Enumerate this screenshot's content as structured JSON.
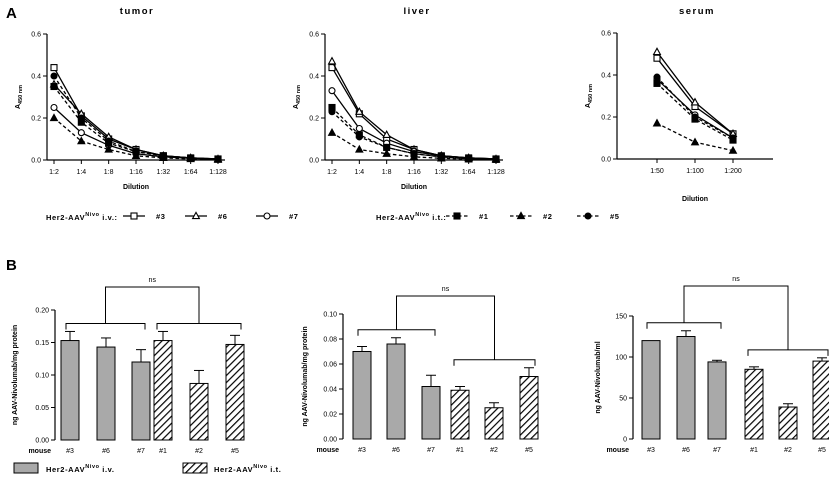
{
  "panels": {
    "a": "A",
    "b": "B"
  },
  "colors": {
    "iv_bar": "#a9a9a9",
    "it_bar": "#ffffff",
    "line": "#000000"
  },
  "legend_a": {
    "iv_prefix": "Her2-AAV",
    "iv_sup": "Nivo",
    "iv_suffix": " i.v.:",
    "it_prefix": "Her2-AAV",
    "it_sup": "Nivo",
    "it_suffix": " i.t.:",
    "entries": [
      "#3",
      "#6",
      "#7",
      "#1",
      "#2",
      "#5"
    ]
  },
  "legend_b": {
    "iv_prefix": "Her2-AAV",
    "iv_sup": "Nivo",
    "iv_suffix": " i.v.",
    "it_prefix": "Her2-AAV",
    "it_sup": "Nivo",
    "it_suffix": " i.t."
  },
  "chart_data": [
    {
      "type": "line",
      "title": "tumor",
      "xlabel": "Dilution",
      "ylabel": "A450 nm",
      "categories": [
        "1:2",
        "1:4",
        "1:8",
        "1:16",
        "1:32",
        "1:64",
        "1:128"
      ],
      "ylim": [
        0,
        0.6
      ],
      "yticks": [
        "0.0",
        "0.2",
        "0.4",
        "0.6"
      ],
      "series": [
        {
          "name": "#3",
          "route": "i.v.",
          "marker": "square",
          "values": [
            0.44,
            0.21,
            0.1,
            0.05,
            0.02,
            0.01,
            0.005
          ]
        },
        {
          "name": "#6",
          "route": "i.v.",
          "marker": "triangle",
          "values": [
            0.36,
            0.22,
            0.11,
            0.05,
            0.02,
            0.01,
            0.005
          ]
        },
        {
          "name": "#7",
          "route": "i.v.",
          "marker": "circle",
          "values": [
            0.25,
            0.13,
            0.07,
            0.03,
            0.015,
            0.008,
            0.003
          ]
        },
        {
          "name": "#1",
          "route": "i.t.",
          "marker": "square",
          "values": [
            0.35,
            0.18,
            0.08,
            0.04,
            0.02,
            0.008,
            0.004
          ]
        },
        {
          "name": "#2",
          "route": "i.t.",
          "marker": "triangle",
          "values": [
            0.2,
            0.09,
            0.05,
            0.02,
            0.01,
            0.005,
            0.002
          ]
        },
        {
          "name": "#5",
          "route": "i.t.",
          "marker": "circle",
          "values": [
            0.4,
            0.2,
            0.09,
            0.04,
            0.02,
            0.01,
            0.005
          ]
        }
      ]
    },
    {
      "type": "line",
      "title": "liver",
      "xlabel": "Dilution",
      "ylabel": "A450 nm",
      "categories": [
        "1:2",
        "1:4",
        "1:8",
        "1:16",
        "1:32",
        "1:64",
        "1:128"
      ],
      "ylim": [
        0,
        0.6
      ],
      "yticks": [
        "0.0",
        "0.2",
        "0.4",
        "0.6"
      ],
      "series": [
        {
          "name": "#3",
          "route": "i.v.",
          "marker": "square",
          "values": [
            0.44,
            0.22,
            0.1,
            0.05,
            0.02,
            0.01,
            0.005
          ]
        },
        {
          "name": "#6",
          "route": "i.v.",
          "marker": "triangle",
          "values": [
            0.47,
            0.23,
            0.12,
            0.05,
            0.02,
            0.01,
            0.005
          ]
        },
        {
          "name": "#7",
          "route": "i.v.",
          "marker": "circle",
          "values": [
            0.33,
            0.15,
            0.08,
            0.04,
            0.02,
            0.01,
            0.005
          ]
        },
        {
          "name": "#1",
          "route": "i.t.",
          "marker": "square",
          "values": [
            0.25,
            0.12,
            0.06,
            0.03,
            0.015,
            0.005,
            0.003
          ]
        },
        {
          "name": "#2",
          "route": "i.t.",
          "marker": "triangle",
          "values": [
            0.13,
            0.05,
            0.03,
            0.015,
            0.008,
            0.004,
            0.002
          ]
        },
        {
          "name": "#5",
          "route": "i.t.",
          "marker": "circle",
          "values": [
            0.23,
            0.11,
            0.06,
            0.03,
            0.015,
            0.006,
            0.003
          ]
        }
      ]
    },
    {
      "type": "line",
      "title": "serum",
      "xlabel": "Dilution",
      "ylabel": "A450 nm",
      "categories": [
        "1:50",
        "1:100",
        "1:200"
      ],
      "ylim": [
        0,
        0.6
      ],
      "yticks": [
        "0.0",
        "0.2",
        "0.4",
        "0.6"
      ],
      "series": [
        {
          "name": "#3",
          "route": "i.v.",
          "marker": "square",
          "values": [
            0.48,
            0.25,
            0.12
          ]
        },
        {
          "name": "#6",
          "route": "i.v.",
          "marker": "triangle",
          "values": [
            0.51,
            0.27,
            0.12
          ]
        },
        {
          "name": "#7",
          "route": "i.v.",
          "marker": "circle",
          "values": [
            0.38,
            0.21,
            0.1
          ]
        },
        {
          "name": "#1",
          "route": "i.t.",
          "marker": "square",
          "values": [
            0.36,
            0.19,
            0.09
          ]
        },
        {
          "name": "#2",
          "route": "i.t.",
          "marker": "triangle",
          "values": [
            0.17,
            0.08,
            0.04
          ]
        },
        {
          "name": "#5",
          "route": "i.t.",
          "marker": "circle",
          "values": [
            0.39,
            0.2,
            0.1
          ]
        }
      ]
    },
    {
      "type": "bar",
      "ylabel": "ng AAV-Nivolumab/mg protein",
      "xprefix": "mouse",
      "categories": [
        "#3",
        "#6",
        "#7",
        "#1",
        "#2",
        "#5"
      ],
      "groups": [
        "i.v.",
        "i.v.",
        "i.v.",
        "i.t.",
        "i.t.",
        "i.t."
      ],
      "values": [
        0.153,
        0.143,
        0.12,
        0.153,
        0.087,
        0.147
      ],
      "errors": [
        0.014,
        0.014,
        0.019,
        0.014,
        0.02,
        0.014
      ],
      "ylim": [
        0,
        0.2
      ],
      "yticks": [
        "0.00",
        "0.05",
        "0.10",
        "0.15",
        "0.20"
      ],
      "significance": "ns"
    },
    {
      "type": "bar",
      "ylabel": "ng AAV-Nivolumab/mg protein",
      "xprefix": "mouse",
      "categories": [
        "#3",
        "#6",
        "#7",
        "#1",
        "#2",
        "#5"
      ],
      "groups": [
        "i.v.",
        "i.v.",
        "i.v.",
        "i.t.",
        "i.t.",
        "i.t."
      ],
      "values": [
        0.07,
        0.076,
        0.042,
        0.039,
        0.025,
        0.05
      ],
      "errors": [
        0.004,
        0.005,
        0.009,
        0.003,
        0.004,
        0.007
      ],
      "ylim": [
        0,
        0.1
      ],
      "yticks": [
        "0.00",
        "0.02",
        "0.04",
        "0.06",
        "0.08",
        "0.10"
      ],
      "significance": "ns"
    },
    {
      "type": "bar",
      "ylabel": "ng AAV-Nivolumab/ml",
      "xprefix": "mouse",
      "categories": [
        "#3",
        "#6",
        "#7",
        "#1",
        "#2",
        "#5"
      ],
      "groups": [
        "i.v.",
        "i.v.",
        "i.v.",
        "i.t.",
        "i.t.",
        "i.t."
      ],
      "values": [
        120,
        125,
        94,
        85,
        39,
        95
      ],
      "errors": [
        0,
        7,
        2,
        3,
        4,
        4
      ],
      "ylim": [
        0,
        150
      ],
      "yticks": [
        "0",
        "50",
        "100",
        "150"
      ],
      "significance": "ns"
    }
  ]
}
